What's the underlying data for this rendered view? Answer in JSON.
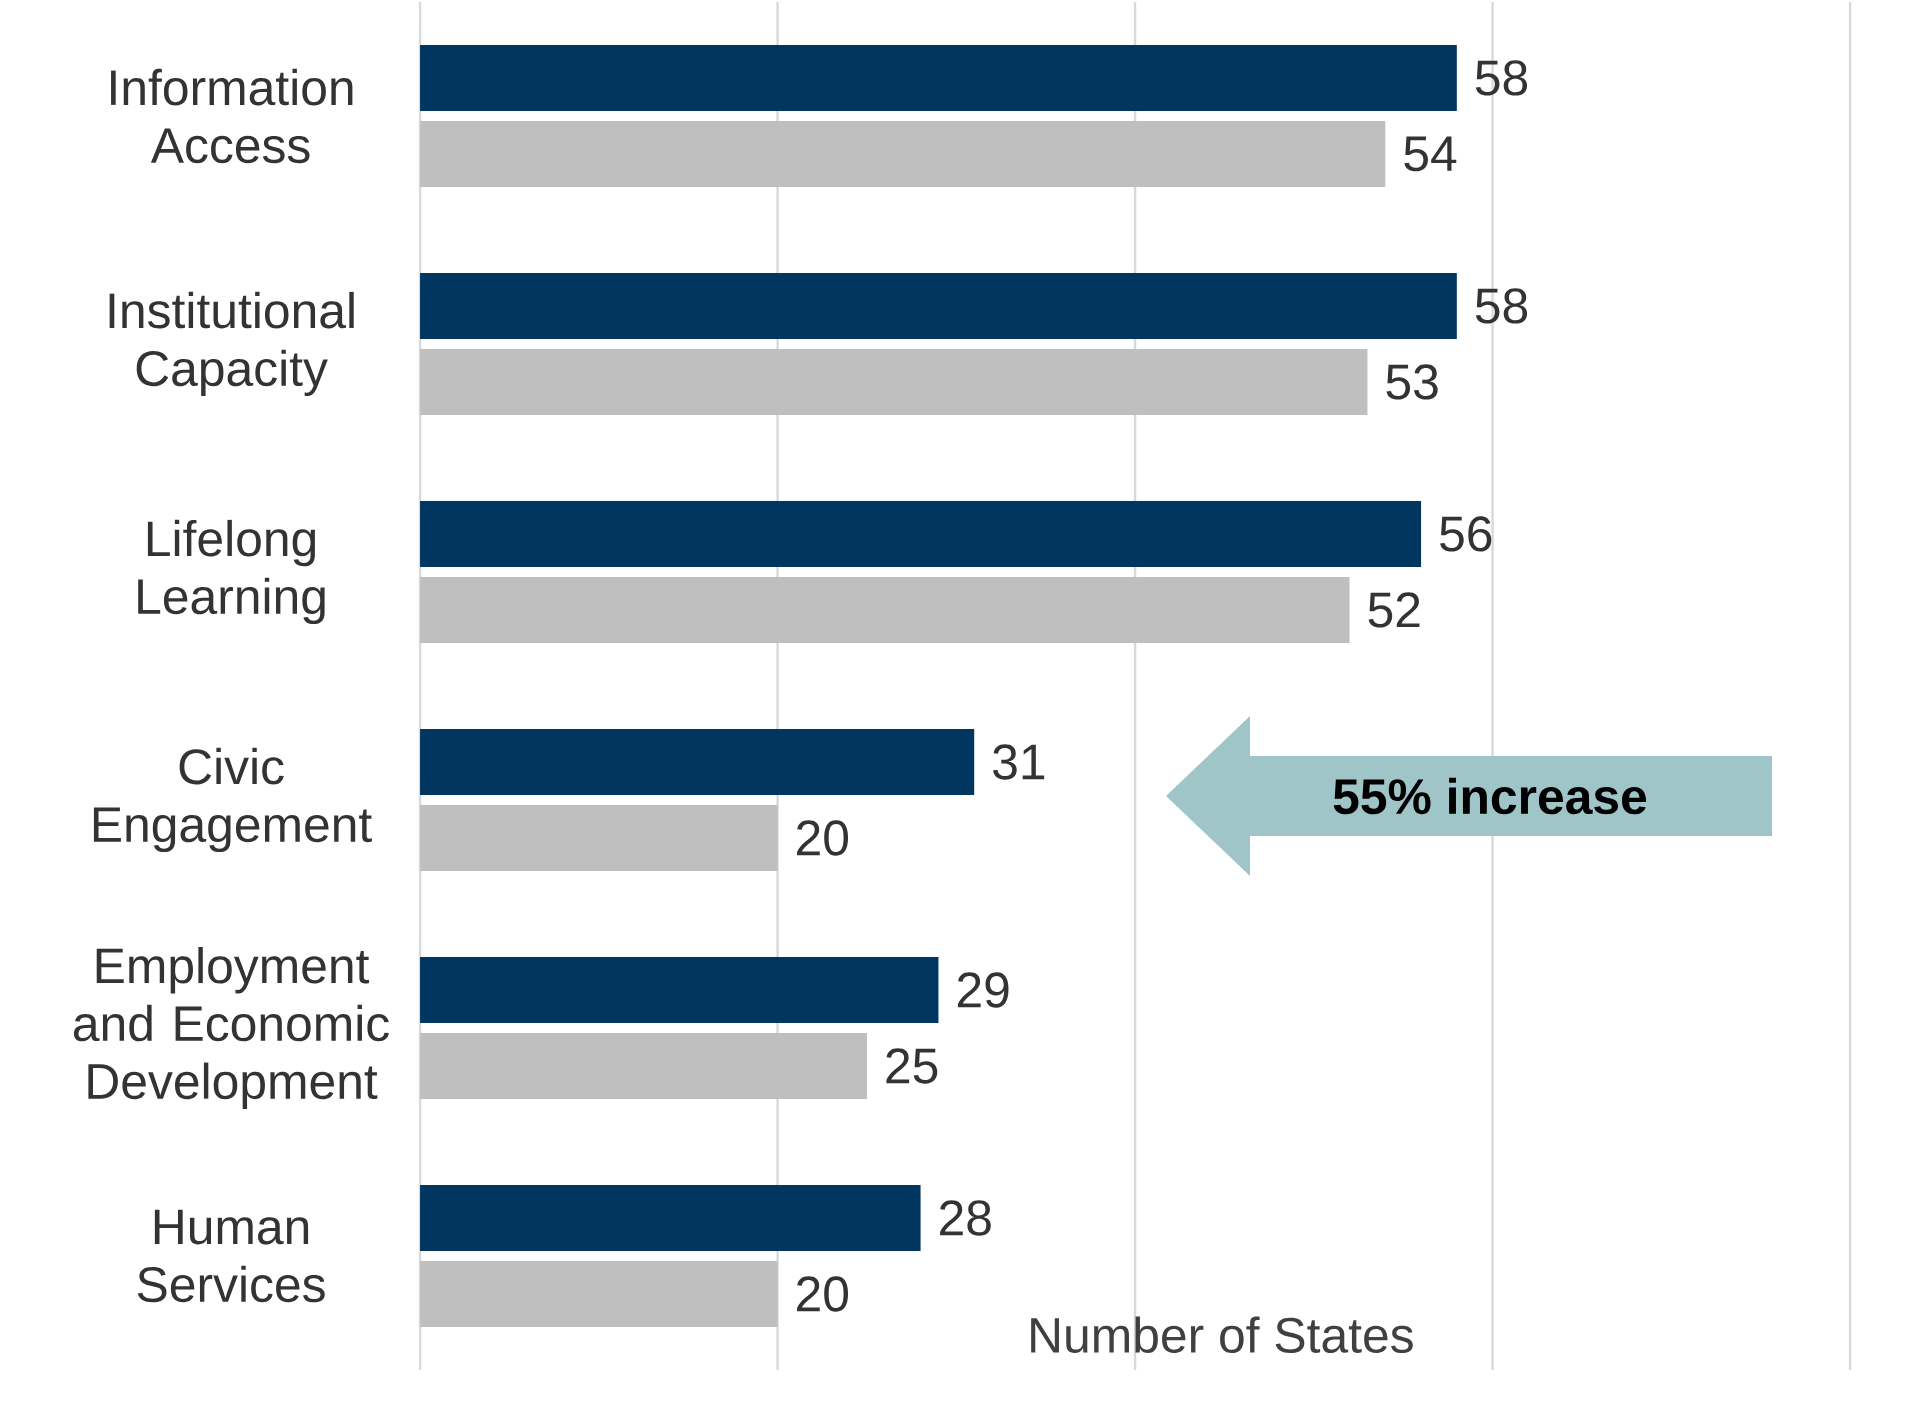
{
  "chart_data": {
    "type": "bar",
    "orientation": "horizontal",
    "categories": [
      "Information Access",
      "Institutional Capacity",
      "Lifelong Learning",
      "Civic Engagement",
      "Employment and Economic Development",
      "Human Services"
    ],
    "series": [
      {
        "color": "#003660",
        "values": [
          58,
          58,
          56,
          31,
          29,
          28
        ]
      },
      {
        "color": "#bfbfbf",
        "values": [
          54,
          53,
          52,
          20,
          25,
          20
        ]
      }
    ],
    "xlim": [
      0,
      80
    ],
    "xticks": [
      {
        "value": 0,
        "label": null
      },
      {
        "value": 20,
        "label": null
      },
      {
        "value": 40,
        "label": null
      },
      {
        "value": 60,
        "label": null
      },
      {
        "value": 80,
        "label": null
      }
    ],
    "grid": "x",
    "tick_labels": "y",
    "data_labels": true,
    "xlabel": "Number of States",
    "annotations": [
      "55% increase"
    ]
  }
}
